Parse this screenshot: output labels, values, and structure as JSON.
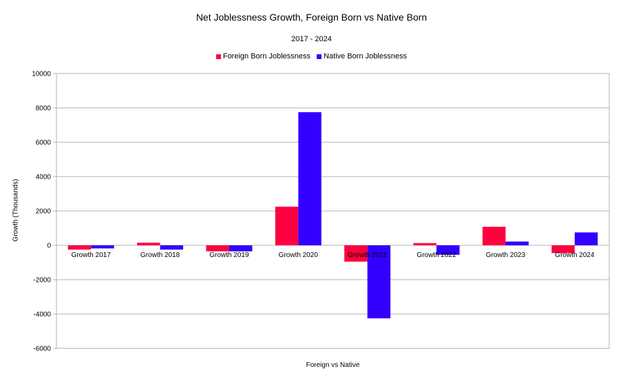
{
  "chart_data": {
    "type": "bar",
    "title": "Net Joblessness Growth, Foreign Born vs Native Born",
    "subtitle": "2017 - 2024",
    "xlabel": "Foreign vs Native",
    "ylabel": "Growth (Thousands)",
    "ylim": [
      -6000,
      10000
    ],
    "yticks": [
      -6000,
      -4000,
      -2000,
      0,
      2000,
      4000,
      6000,
      8000,
      10000
    ],
    "grid": true,
    "legend_position": "top",
    "categories": [
      "Growth 2017",
      "Growth 2018",
      "Growth 2019",
      "Growth 2020",
      "Growth 2021",
      "Growth 2022",
      "Growth 2023",
      "Growth 2024"
    ],
    "series": [
      {
        "name": "Foreign Born Joblessness",
        "color": "#ff0040",
        "values": [
          -250,
          150,
          -350,
          2250,
          -950,
          130,
          1080,
          -450
        ]
      },
      {
        "name": "Native Born Joblessness",
        "color": "#3300ff",
        "values": [
          -180,
          -250,
          -350,
          7750,
          -4250,
          -550,
          220,
          750
        ]
      }
    ]
  }
}
